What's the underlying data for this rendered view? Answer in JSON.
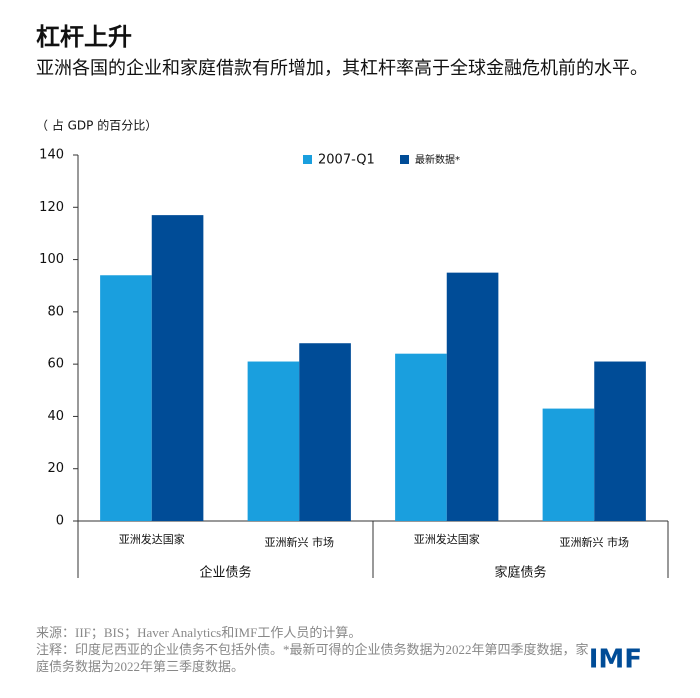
{
  "chart_data": {
    "type": "bar",
    "title": "杠杆上升",
    "subtitle": "亚洲各国的企业和家庭借款有所增加，其杠杆率高于全球金融危机前的水平。",
    "y_label": "（ 占 GDP 的百分比）",
    "categories": [
      "亚洲发达国家",
      "亚洲新兴 市场",
      "亚洲发达国家",
      "亚洲新兴 市场"
    ],
    "group_labels": [
      "企业债务",
      "家庭债务"
    ],
    "series": [
      {
        "name": "2007-Q1",
        "color": "#1a9fde",
        "values": [
          94,
          61,
          64,
          43
        ]
      },
      {
        "name": "最新数据*",
        "color": "#004c97",
        "values": [
          117,
          68,
          95,
          61
        ]
      }
    ],
    "ylim": [
      0,
      140
    ],
    "yticks": [
      0,
      20,
      40,
      60,
      80,
      100,
      120,
      140
    ],
    "source": "来源：IIF；BIS；Haver Analytics和IMF工作人员的计算。",
    "note": "注释：印度尼西亚的企业债务不包括外债。*最新可得的企业债务数据为2022年第四季度数据，家庭债务数据为2022年第三季度数据。",
    "logo": "IMF"
  }
}
